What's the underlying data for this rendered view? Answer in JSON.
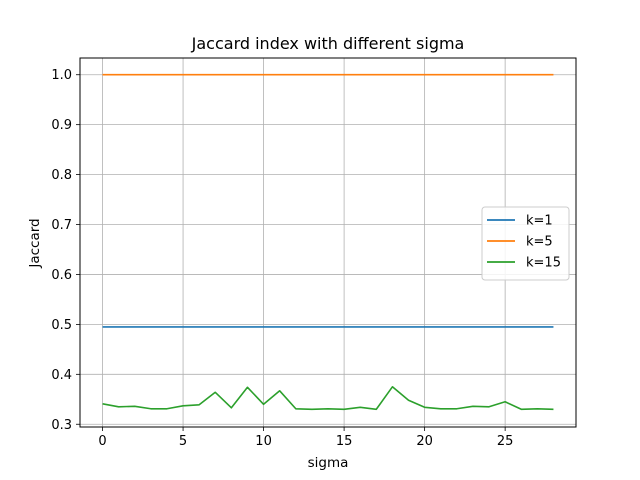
{
  "chart_data": {
    "type": "line",
    "title": "Jaccard index with different sigma",
    "xlabel": "sigma",
    "ylabel": "Jaccard",
    "xlim": [
      -1.4,
      29.4
    ],
    "ylim": [
      0.2945,
      1.0335
    ],
    "xticks": [
      0,
      5,
      10,
      15,
      20,
      25
    ],
    "yticks": [
      0.3,
      0.4,
      0.5,
      0.6,
      0.7,
      0.8,
      0.9,
      1.0
    ],
    "xtick_labels": [
      "0",
      "5",
      "10",
      "15",
      "20",
      "25"
    ],
    "ytick_labels": [
      "0.3",
      "0.4",
      "0.5",
      "0.6",
      "0.7",
      "0.8",
      "0.9",
      "1.0"
    ],
    "grid": true,
    "legend_position": "center-right",
    "x": [
      0,
      1,
      2,
      3,
      4,
      5,
      6,
      7,
      8,
      9,
      10,
      11,
      12,
      13,
      14,
      15,
      16,
      17,
      18,
      19,
      20,
      21,
      22,
      23,
      24,
      25,
      26,
      27,
      28
    ],
    "series": [
      {
        "name": "k=1",
        "color": "#1f77b4",
        "values": [
          0.495,
          0.495,
          0.495,
          0.495,
          0.495,
          0.495,
          0.495,
          0.495,
          0.495,
          0.495,
          0.495,
          0.495,
          0.495,
          0.495,
          0.495,
          0.495,
          0.495,
          0.495,
          0.495,
          0.495,
          0.495,
          0.495,
          0.495,
          0.495,
          0.495,
          0.495,
          0.495,
          0.495,
          0.495
        ]
      },
      {
        "name": "k=5",
        "color": "#ff7f0e",
        "values": [
          1.0,
          1.0,
          1.0,
          1.0,
          1.0,
          1.0,
          1.0,
          1.0,
          1.0,
          1.0,
          1.0,
          1.0,
          1.0,
          1.0,
          1.0,
          1.0,
          1.0,
          1.0,
          1.0,
          1.0,
          1.0,
          1.0,
          1.0,
          1.0,
          1.0,
          1.0,
          1.0,
          1.0,
          1.0
        ]
      },
      {
        "name": "k=15",
        "color": "#2ca02c",
        "values": [
          0.341,
          0.335,
          0.336,
          0.331,
          0.331,
          0.337,
          0.339,
          0.364,
          0.333,
          0.374,
          0.34,
          0.367,
          0.331,
          0.33,
          0.331,
          0.33,
          0.334,
          0.33,
          0.375,
          0.348,
          0.334,
          0.331,
          0.331,
          0.336,
          0.335,
          0.345,
          0.33,
          0.331,
          0.33
        ]
      }
    ]
  }
}
